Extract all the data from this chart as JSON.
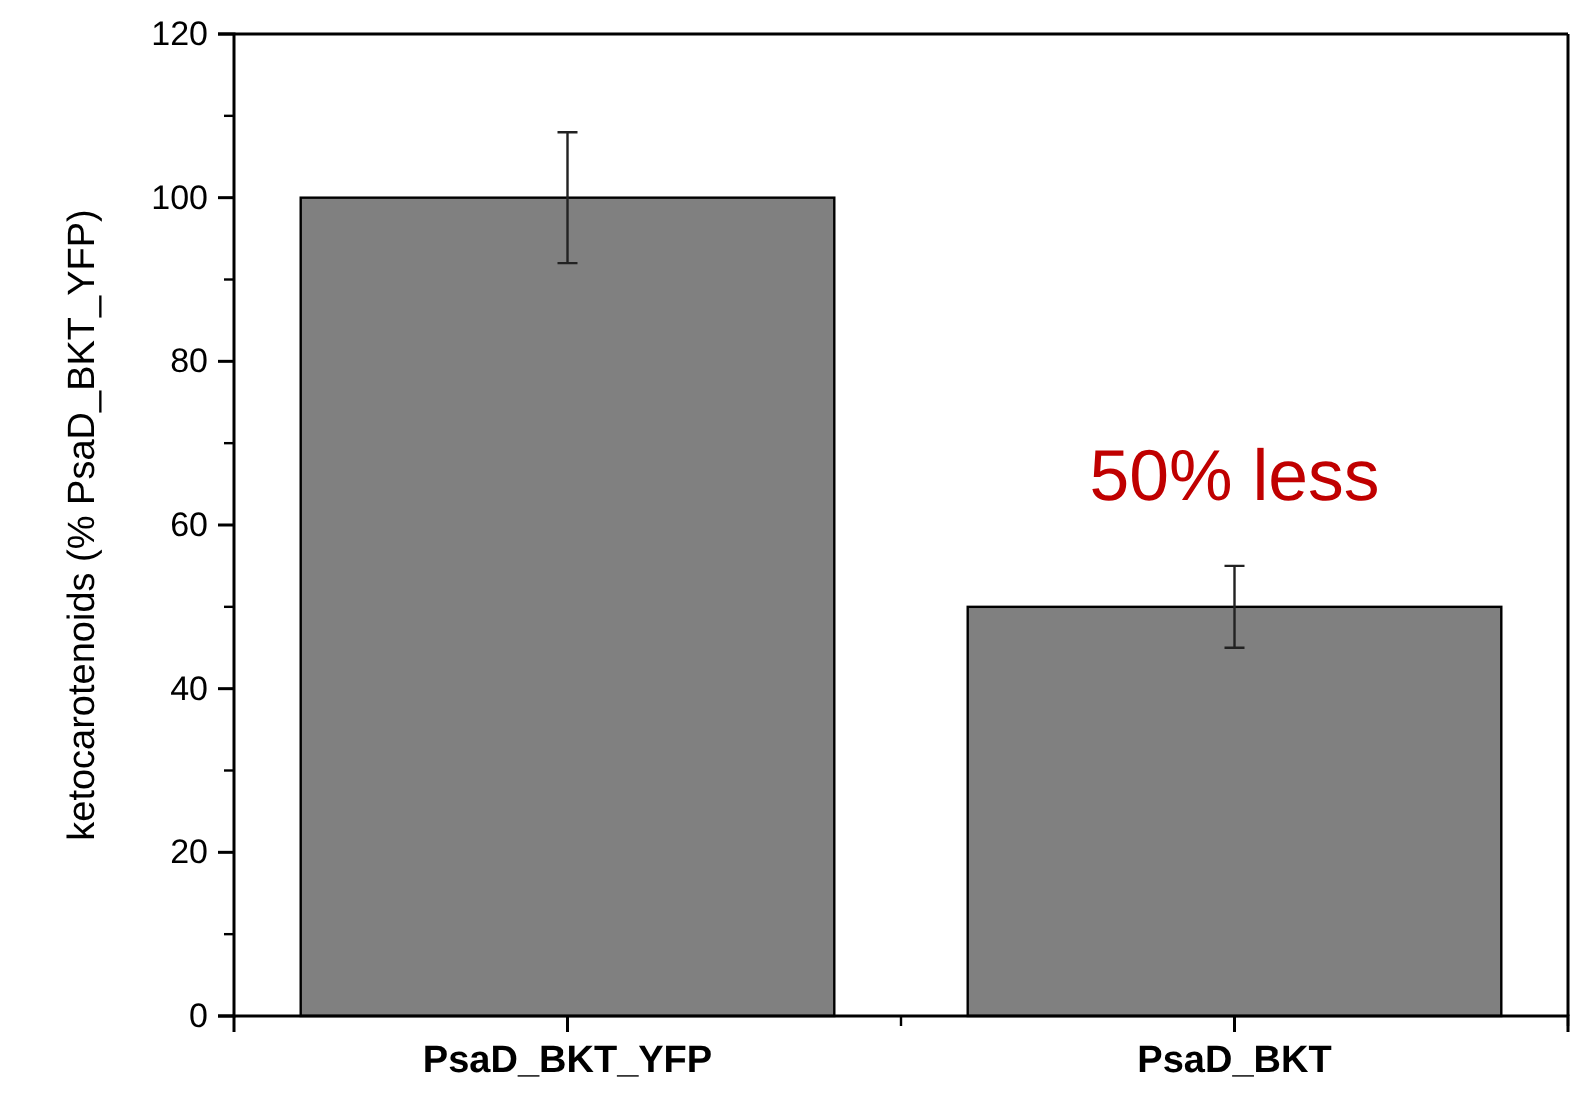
{
  "chart_data": {
    "type": "bar",
    "ylabel": "ketocarotenoids (% PsaD_BKT_YFP)",
    "categories": [
      "PsaD_BKT_YFP",
      "PsaD_BKT"
    ],
    "values": [
      100,
      50
    ],
    "errors": [
      8,
      5
    ],
    "color": "#808080",
    "ylim": [
      0,
      120
    ],
    "yticks": [
      0,
      20,
      40,
      60,
      80,
      100,
      120
    ],
    "grid": false,
    "annotations": [
      "50% less"
    ]
  }
}
